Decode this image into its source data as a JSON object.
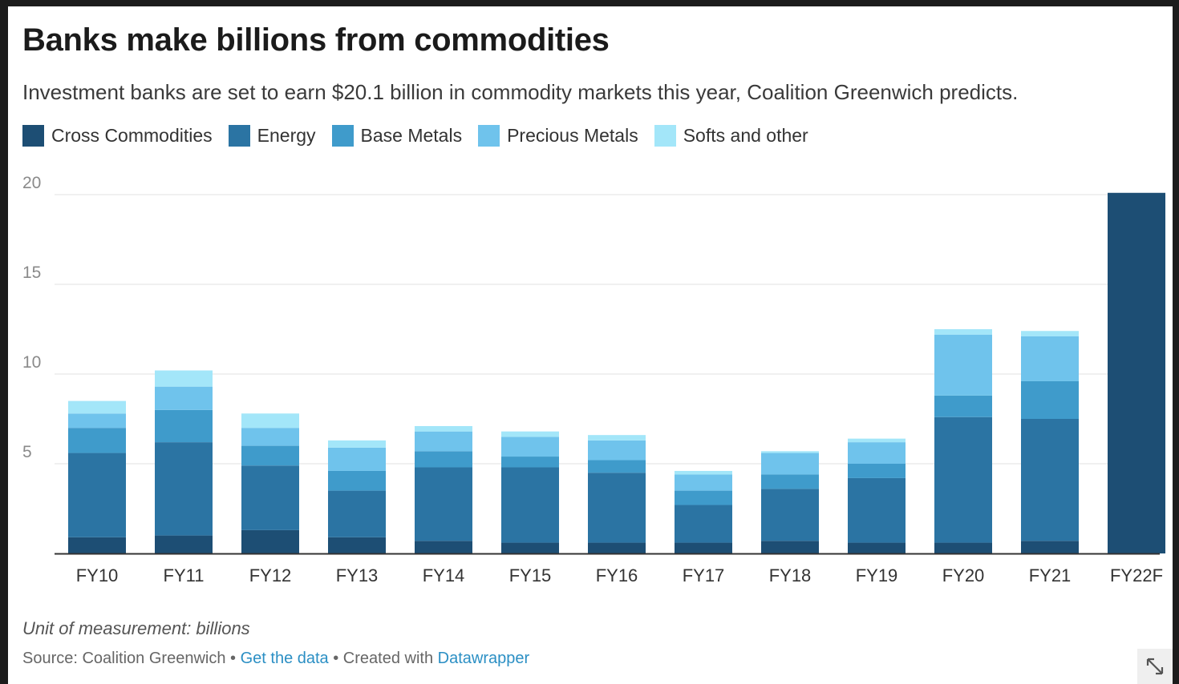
{
  "header": {
    "title": "Banks make billions from commodities",
    "subtitle": "Investment banks are set to earn $20.1 billion in commodity markets this year, Coalition Greenwich predicts."
  },
  "colors": {
    "cross_commodities": "#1d4e74",
    "energy": "#2b74a3",
    "base_metals": "#3f9bcb",
    "precious_metals": "#6fc3ec",
    "softs_and_other": "#a3e6f9",
    "link": "#2b8fc4"
  },
  "chart_data": {
    "type": "bar",
    "stacked": true,
    "title": "Banks make billions from commodities",
    "xlabel": "",
    "ylabel": "",
    "ylim": [
      0,
      20
    ],
    "yticks": [
      20,
      15,
      10,
      5
    ],
    "grid": true,
    "legend_position": "top-left",
    "categories": [
      "FY10",
      "FY11",
      "FY12",
      "FY13",
      "FY14",
      "FY15",
      "FY16",
      "FY17",
      "FY18",
      "FY19",
      "FY20",
      "FY21",
      "FY22F"
    ],
    "series": [
      {
        "name": "Cross Commodities",
        "color": "#1d4e74",
        "values": [
          0.9,
          1.0,
          1.3,
          0.9,
          0.7,
          0.6,
          0.6,
          0.6,
          0.7,
          0.6,
          0.6,
          0.7,
          20.1
        ]
      },
      {
        "name": "Energy",
        "color": "#2b74a3",
        "values": [
          4.7,
          5.2,
          3.6,
          2.6,
          4.1,
          4.2,
          3.9,
          2.1,
          2.9,
          3.6,
          7.0,
          6.8,
          0
        ]
      },
      {
        "name": "Base Metals",
        "color": "#3f9bcb",
        "values": [
          1.4,
          1.8,
          1.1,
          1.1,
          0.9,
          0.6,
          0.7,
          0.8,
          0.8,
          0.8,
          1.2,
          2.1,
          0
        ]
      },
      {
        "name": "Precious Metals",
        "color": "#6fc3ec",
        "values": [
          0.8,
          1.3,
          1.0,
          1.3,
          1.1,
          1.1,
          1.1,
          0.9,
          1.2,
          1.2,
          3.4,
          2.5,
          0
        ]
      },
      {
        "name": "Softs and other",
        "color": "#a3e6f9",
        "values": [
          0.7,
          0.9,
          0.8,
          0.4,
          0.3,
          0.3,
          0.3,
          0.2,
          0.1,
          0.2,
          0.3,
          0.3,
          0
        ]
      }
    ]
  },
  "footer": {
    "unit_note": "Unit of measurement: billions",
    "source_prefix": "Source: Coalition Greenwich",
    "sep": " • ",
    "get_data_label": "Get the data",
    "created_with_prefix": "Created with ",
    "datawrapper_label": "Datawrapper"
  },
  "icons": {
    "expand": "expand-icon"
  }
}
